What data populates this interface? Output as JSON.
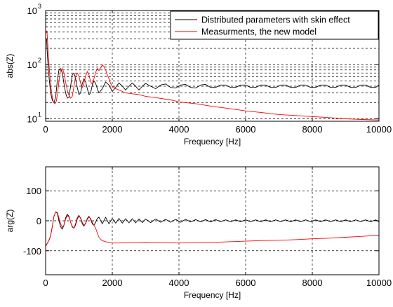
{
  "chart_data": [
    {
      "type": "line",
      "xlabel": "Frequency [Hz]",
      "ylabel": "abs(Z)",
      "xlim": [
        0,
        10000
      ],
      "ylim": [
        9,
        1000
      ],
      "yscale": "log",
      "xticks": [
        0,
        2000,
        4000,
        6000,
        8000,
        10000
      ],
      "xtick_labels": [
        "0",
        "2000",
        "4000",
        "6000",
        "8000",
        "10000"
      ],
      "ytick_labels": [
        {
          "value": 1000,
          "base": "10",
          "exp": "3"
        },
        {
          "value": 100,
          "base": "10",
          "exp": "2"
        },
        {
          "value": 10,
          "base": "10",
          "exp": "1"
        }
      ],
      "grid": true,
      "legend_position": "top-right",
      "series": [
        {
          "name": "Distributed parameters with skin effect",
          "color": "#000000",
          "x": [
            0,
            30,
            60,
            100,
            150,
            200,
            250,
            300,
            350,
            400,
            450,
            500,
            550,
            600,
            650,
            700,
            750,
            800,
            850,
            900,
            950,
            1000,
            1050,
            1100,
            1150,
            1200,
            1250,
            1300,
            1350,
            1400,
            1450,
            1500,
            1550,
            1600,
            1700,
            1800,
            1900,
            2000,
            2100,
            2200,
            2300,
            2400,
            2500,
            2600,
            2700,
            2800,
            2900,
            3000,
            3150,
            3300,
            3450,
            3600,
            3750,
            3900,
            4050,
            4200,
            4350,
            4500,
            4650,
            4800,
            4950,
            5100,
            5250,
            5400,
            5550,
            5700,
            5850,
            6000,
            6150,
            6300,
            6450,
            6600,
            6750,
            6900,
            7050,
            7200,
            7350,
            7500,
            7650,
            7800,
            7950,
            8100,
            8250,
            8400,
            8550,
            8700,
            8850,
            9000,
            9150,
            9300,
            9450,
            9600,
            9750,
            9900,
            10000
          ],
          "y": [
            300,
            300,
            130,
            60,
            30,
            22,
            20,
            25,
            50,
            80,
            85,
            70,
            45,
            30,
            24,
            25,
            40,
            65,
            70,
            55,
            38,
            28,
            30,
            45,
            55,
            48,
            36,
            28,
            30,
            42,
            50,
            45,
            36,
            30,
            36,
            48,
            42,
            32,
            38,
            46,
            40,
            34,
            40,
            46,
            40,
            34,
            40,
            45,
            40,
            36,
            42,
            44,
            38,
            37,
            42,
            43,
            38,
            37,
            42,
            43,
            38,
            38,
            42,
            42,
            38,
            38,
            42,
            42,
            38,
            38,
            42,
            42,
            38,
            38,
            42,
            42,
            38,
            38,
            42,
            42,
            38,
            38,
            42,
            42,
            38,
            38,
            42,
            42,
            38,
            38,
            42,
            42,
            38,
            38,
            42
          ]
        },
        {
          "name": "Measurments, the new model",
          "color": "#ff0000",
          "x": [
            0,
            40,
            80,
            120,
            160,
            200,
            240,
            280,
            320,
            360,
            400,
            450,
            500,
            550,
            600,
            650,
            700,
            750,
            800,
            850,
            900,
            950,
            1000,
            1050,
            1100,
            1150,
            1200,
            1250,
            1300,
            1350,
            1400,
            1450,
            1500,
            1550,
            1600,
            1650,
            1700,
            1750,
            1800,
            1850,
            1900,
            1950,
            2000,
            2100,
            2200,
            2300,
            2400,
            2600,
            2800,
            3000,
            3200,
            3400,
            3600,
            3800,
            4000,
            4500,
            5000,
            5500,
            6000,
            6500,
            7000,
            7500,
            8000,
            8500,
            9000,
            9500,
            10000
          ],
          "y": [
            380,
            420,
            160,
            70,
            38,
            25,
            20,
            19,
            21,
            30,
            50,
            78,
            85,
            70,
            48,
            34,
            27,
            24,
            26,
            40,
            62,
            70,
            62,
            45,
            38,
            45,
            62,
            75,
            65,
            48,
            44,
            55,
            72,
            85,
            78,
            88,
            98,
            93,
            80,
            65,
            55,
            45,
            40,
            36,
            34,
            32,
            30,
            29,
            28,
            26,
            25,
            24,
            23,
            22,
            20.5,
            19,
            17,
            15.5,
            14,
            13,
            12,
            11.5,
            11,
            10.5,
            10,
            9.7,
            9.5
          ]
        }
      ]
    },
    {
      "type": "line",
      "xlabel": "Frequency [Hz]",
      "ylabel": "arg(Z)",
      "xlim": [
        0,
        10000
      ],
      "ylim": [
        -180,
        180
      ],
      "xticks": [
        0,
        2000,
        4000,
        6000,
        8000,
        10000
      ],
      "xtick_labels": [
        "0",
        "2000",
        "4000",
        "6000",
        "8000",
        "10000"
      ],
      "yticks": [
        100,
        0,
        -100
      ],
      "ytick_labels": [
        "100",
        "0",
        "-100"
      ],
      "grid": true,
      "series": [
        {
          "color": "#000000",
          "x": [
            0,
            50,
            100,
            150,
            200,
            250,
            300,
            350,
            400,
            450,
            500,
            550,
            600,
            650,
            700,
            750,
            800,
            850,
            900,
            950,
            1000,
            1050,
            1100,
            1150,
            1200,
            1250,
            1300,
            1350,
            1400,
            1450,
            1500,
            1550,
            1600,
            1700,
            1800,
            1900,
            2000,
            2100,
            2200,
            2300,
            2400,
            2500,
            2600,
            2700,
            2800,
            2900,
            3000,
            3150,
            3300,
            3450,
            3600,
            3750,
            3900,
            4050,
            4200,
            4350,
            4500,
            4650,
            4800,
            4950,
            5100,
            5250,
            5400,
            5550,
            5700,
            5850,
            6000,
            6150,
            6300,
            6450,
            6600,
            6750,
            6900,
            7050,
            7200,
            7350,
            7500,
            7650,
            7800,
            7950,
            8100,
            8250,
            8400,
            8550,
            8700,
            8850,
            9000,
            9150,
            9300,
            9450,
            9600,
            9750,
            9900,
            10000
          ],
          "y": [
            -85,
            -75,
            -65,
            -50,
            -20,
            15,
            30,
            25,
            0,
            -20,
            -28,
            -15,
            10,
            22,
            15,
            -5,
            -20,
            -25,
            -10,
            10,
            18,
            8,
            -10,
            -18,
            -8,
            8,
            15,
            5,
            -10,
            -15,
            -5,
            8,
            12,
            -10,
            12,
            -10,
            8,
            -8,
            8,
            -8,
            7,
            -7,
            7,
            -7,
            6,
            -6,
            6,
            -6,
            6,
            -5,
            5,
            -5,
            5,
            -5,
            5,
            -4,
            4,
            -4,
            4,
            -4,
            4,
            -3,
            3,
            -3,
            3,
            -3,
            3,
            -3,
            3,
            -3,
            3,
            -3,
            3,
            -3,
            3,
            -3,
            3,
            -3,
            3,
            -3,
            3,
            -3,
            3,
            -3,
            3,
            -3,
            3,
            -3,
            3,
            -3,
            3,
            -3,
            3,
            -3
          ]
        },
        {
          "color": "#ff0000",
          "x": [
            0,
            50,
            100,
            150,
            200,
            250,
            300,
            350,
            400,
            450,
            500,
            550,
            600,
            650,
            700,
            750,
            800,
            850,
            900,
            950,
            1000,
            1050,
            1100,
            1150,
            1200,
            1250,
            1300,
            1350,
            1400,
            1450,
            1500,
            1550,
            1600,
            1650,
            1700,
            1750,
            1800,
            1900,
            2000,
            2200,
            2500,
            3000,
            3500,
            4000,
            4500,
            5000,
            5500,
            6000,
            6500,
            7000,
            7500,
            8000,
            8500,
            9000,
            9500,
            10000
          ],
          "y": [
            -85,
            -75,
            -65,
            -50,
            -20,
            15,
            30,
            28,
            10,
            -10,
            -22,
            -15,
            5,
            18,
            12,
            -5,
            -18,
            -25,
            -15,
            5,
            15,
            10,
            -5,
            -15,
            -10,
            5,
            12,
            8,
            -5,
            -15,
            -25,
            -40,
            -55,
            -62,
            -66,
            -68,
            -70,
            -72,
            -74,
            -74,
            -73,
            -72,
            -73,
            -74,
            -73,
            -72,
            -70,
            -68,
            -66,
            -65,
            -63,
            -60,
            -58,
            -55,
            -52,
            -48
          ]
        }
      ]
    }
  ]
}
